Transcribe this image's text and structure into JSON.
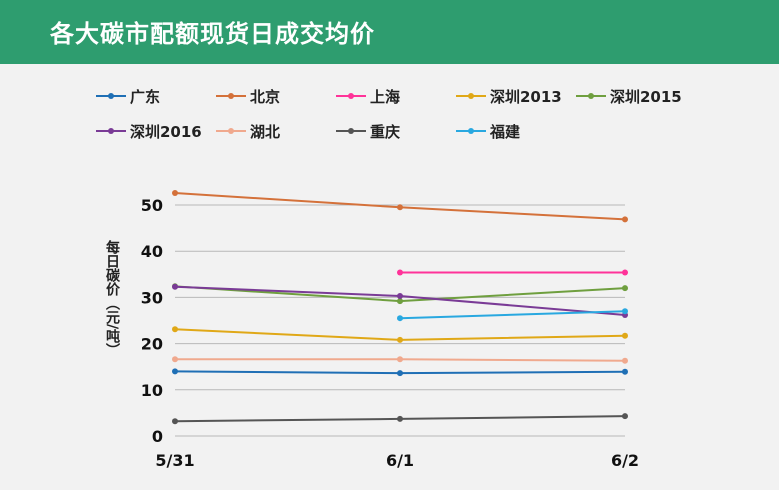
{
  "header": {
    "title": "各大碳市配额现货日成交均价"
  },
  "chart_data": {
    "type": "line",
    "title": "各大碳市配额现货日成交均价",
    "xlabel": "",
    "ylabel": "每日碳价（元/吨）",
    "categories": [
      "5/31",
      "6/1",
      "6/2"
    ],
    "ylim": [
      0,
      50
    ],
    "yticks": [
      0,
      10,
      20,
      30,
      40,
      50
    ],
    "grid": true,
    "legend_position": "top",
    "series": [
      {
        "name": "广东",
        "color": "#1f6fb5",
        "values": [
          14.0,
          13.6,
          13.9
        ]
      },
      {
        "name": "北京",
        "color": "#d4713a",
        "values": [
          52.6,
          49.5,
          46.9
        ]
      },
      {
        "name": "上海",
        "color": "#ff3399",
        "values": [
          null,
          35.4,
          35.4
        ]
      },
      {
        "name": "深圳2013",
        "color": "#e0a817",
        "values": [
          23.1,
          20.8,
          21.7
        ]
      },
      {
        "name": "深圳2015",
        "color": "#6f9f3f",
        "values": [
          32.4,
          29.2,
          32.0
        ]
      },
      {
        "name": "深圳2016",
        "color": "#7a3b96",
        "values": [
          32.3,
          30.3,
          26.2
        ]
      },
      {
        "name": "湖北",
        "color": "#f0a98e",
        "values": [
          16.6,
          16.6,
          16.3
        ]
      },
      {
        "name": "重庆",
        "color": "#555555",
        "values": [
          3.2,
          3.7,
          4.3
        ]
      },
      {
        "name": "福建",
        "color": "#29a8e0",
        "values": [
          null,
          25.5,
          27.0
        ]
      }
    ]
  }
}
